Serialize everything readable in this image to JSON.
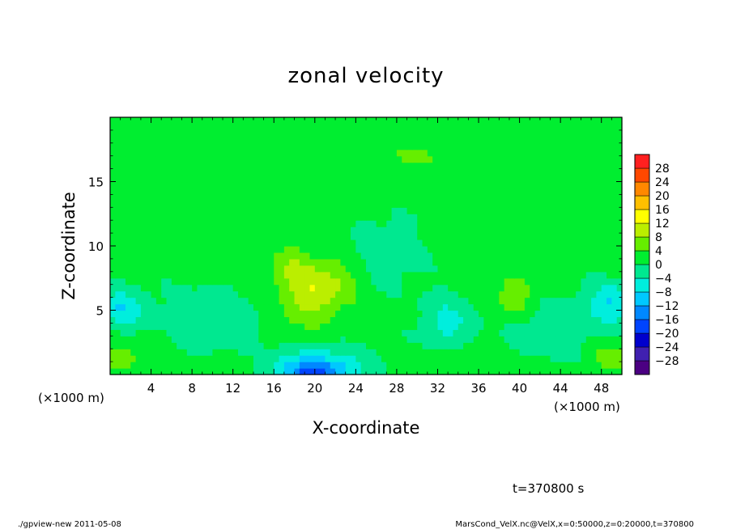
{
  "chart_data": {
    "type": "heatmap",
    "title": "zonal velocity",
    "xlabel": "X-coordinate",
    "ylabel": "Z-coordinate",
    "x_unit_left": "(×1000 m)",
    "x_unit_right": "(×1000 m)",
    "xlim": [
      0,
      50
    ],
    "ylim": [
      0,
      20
    ],
    "x_ticks": [
      4,
      8,
      12,
      16,
      20,
      24,
      28,
      32,
      36,
      40,
      44,
      48
    ],
    "y_ticks": [
      5,
      10,
      15
    ],
    "x_tick_labels": [
      "4",
      "8",
      "12",
      "16",
      "20",
      "24",
      "28",
      "32",
      "36",
      "40",
      "44",
      "48"
    ],
    "y_tick_labels": [
      "5",
      "10",
      "15"
    ],
    "colorbar": {
      "min": -32,
      "max": 32,
      "step": 4,
      "tick_labels": [
        "28",
        "24",
        "20",
        "16",
        "12",
        "8",
        "4",
        "0",
        "−4",
        "−8",
        "−12",
        "−16",
        "−20",
        "−24",
        "−28"
      ],
      "colors": [
        "#4b0082",
        "#4020b0",
        "#0000cd",
        "#0044ff",
        "#0088ff",
        "#00c8ff",
        "#00eedd",
        "#00e890",
        "#00ee30",
        "#66ee00",
        "#bbee00",
        "#ffff00",
        "#ffc000",
        "#ff8800",
        "#ff4800",
        "#ff2020",
        "#ff8080"
      ]
    },
    "annotation_time": "t=370800 s",
    "features": [
      {
        "x": 21,
        "z": 7.0,
        "value": 8,
        "sx": 3.2,
        "sz": 2.0
      },
      {
        "x": 19,
        "z": 5.5,
        "value": 5,
        "sx": 2.5,
        "sz": 2.5
      },
      {
        "x": 17.5,
        "z": 8.5,
        "value": 5,
        "sx": 2.0,
        "sz": 1.8
      },
      {
        "x": 39.5,
        "z": 6.0,
        "value": 6,
        "sx": 2.0,
        "sz": 1.6
      },
      {
        "x": 20,
        "z": 0.2,
        "value": -12,
        "sx": 3.0,
        "sz": 0.9
      },
      {
        "x": 20,
        "z": 0.8,
        "value": -8,
        "sx": 5.0,
        "sz": 1.5
      },
      {
        "x": 1,
        "z": 5.2,
        "value": -9,
        "sx": 2.5,
        "sz": 1.4
      },
      {
        "x": 49,
        "z": 5.5,
        "value": -9,
        "sx": 2.5,
        "sz": 1.6
      },
      {
        "x": 10,
        "z": 4.0,
        "value": -5,
        "sx": 4.0,
        "sz": 2.5
      },
      {
        "x": 33,
        "z": 4.0,
        "value": -6,
        "sx": 2.5,
        "sz": 2.2
      },
      {
        "x": 43,
        "z": 3.5,
        "value": -5,
        "sx": 3.5,
        "sz": 2.0
      },
      {
        "x": 27,
        "z": 9.5,
        "value": -4,
        "sx": 3.0,
        "sz": 2.5
      },
      {
        "x": 1,
        "z": 1.2,
        "value": 6,
        "sx": 1.8,
        "sz": 0.9
      },
      {
        "x": 49,
        "z": 1.3,
        "value": 6,
        "sx": 1.8,
        "sz": 0.9
      },
      {
        "x": 12,
        "z": 1.0,
        "value": 3,
        "sx": 3.0,
        "sz": 1.0
      },
      {
        "x": 34,
        "z": 1.2,
        "value": 4,
        "sx": 3.0,
        "sz": 1.0
      },
      {
        "x": 30,
        "z": 17.0,
        "value": 3,
        "sx": 8.0,
        "sz": 1.5
      },
      {
        "x": 10,
        "z": 13.5,
        "value": 2,
        "sx": 6.0,
        "sz": 1.2
      },
      {
        "x": 38,
        "z": 13.0,
        "value": 3,
        "sx": 5.0,
        "sz": 1.5
      }
    ]
  },
  "footer": {
    "left": "./gpview-new  2011-05-08",
    "right": "MarsCond_VelX.nc@VelX,x=0:50000,z=0:20000,t=370800"
  }
}
